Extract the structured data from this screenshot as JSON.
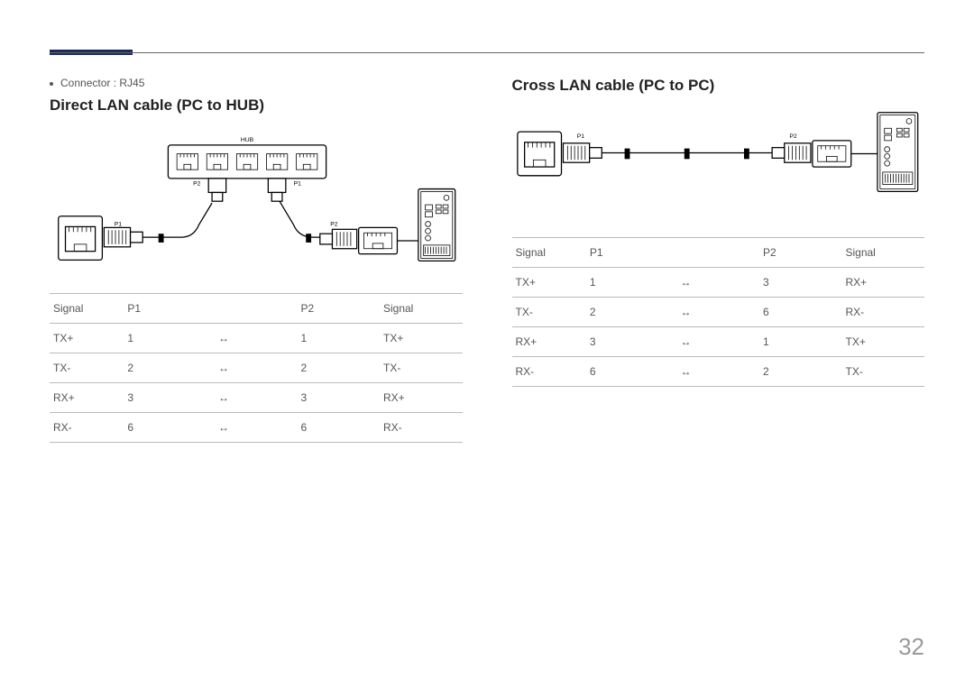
{
  "page_number": "32",
  "accent_color": "#1b2a5e",
  "rule_color": "#666666",
  "text_color": "#4a4a4a",
  "left": {
    "bullet": "Connector : RJ45",
    "title": "Direct LAN cable (PC to HUB)",
    "diagram_labels": {
      "hub": "HUB",
      "rj45": "RJ45",
      "p1": "P1",
      "p2": "P2"
    },
    "table": {
      "columns": [
        "Signal",
        "P1",
        "",
        "P2",
        "Signal"
      ],
      "rows": [
        [
          "TX+",
          "1",
          "↔",
          "1",
          "TX+"
        ],
        [
          "TX-",
          "2",
          "↔",
          "2",
          "TX-"
        ],
        [
          "RX+",
          "3",
          "↔",
          "3",
          "RX+"
        ],
        [
          "RX-",
          "6",
          "↔",
          "6",
          "RX-"
        ]
      ],
      "col_widths": [
        "18%",
        "22%",
        "20%",
        "20%",
        "20%"
      ]
    }
  },
  "right": {
    "title": "Cross LAN cable (PC to PC)",
    "diagram_labels": {
      "rj45": "RJ45",
      "p1": "P1",
      "p2": "P2"
    },
    "table": {
      "columns": [
        "Signal",
        "P1",
        "",
        "P2",
        "Signal"
      ],
      "rows": [
        [
          "TX+",
          "1",
          "↔",
          "3",
          "RX+"
        ],
        [
          "TX-",
          "2",
          "↔",
          "6",
          "RX-"
        ],
        [
          "RX+",
          "3",
          "↔",
          "1",
          "TX+"
        ],
        [
          "RX-",
          "6",
          "↔",
          "2",
          "TX-"
        ]
      ],
      "col_widths": [
        "18%",
        "22%",
        "20%",
        "20%",
        "20%"
      ]
    }
  }
}
